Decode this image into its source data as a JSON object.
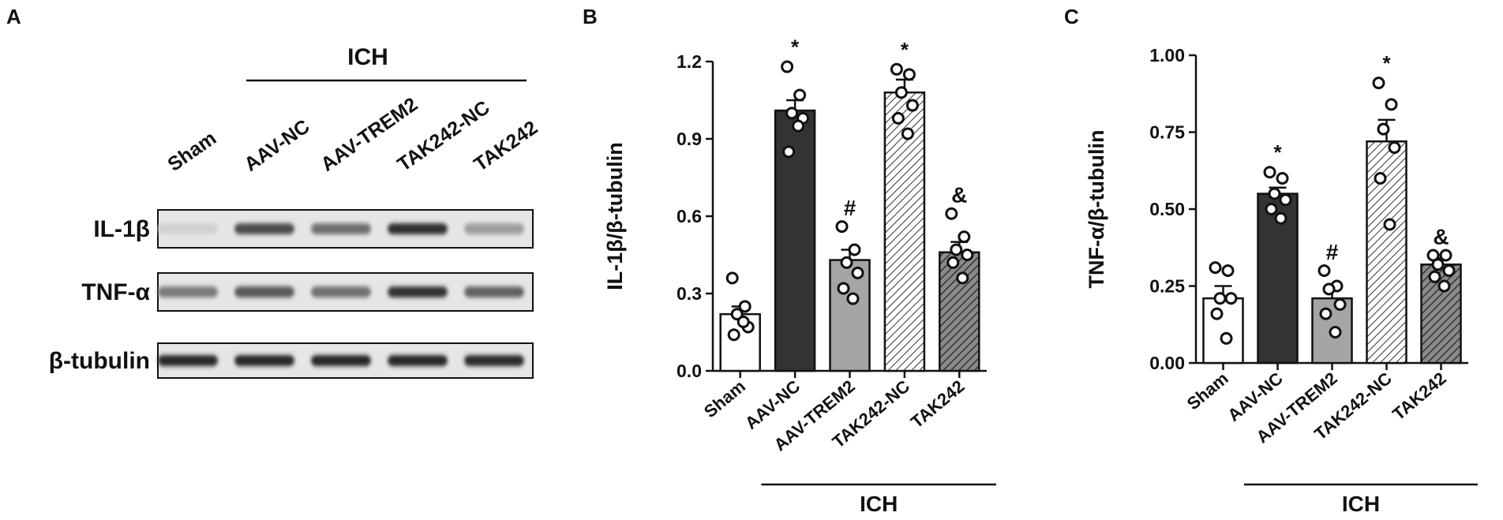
{
  "panels": {
    "a": "A",
    "b": "B",
    "c": "C"
  },
  "blot": {
    "group_label": "ICH",
    "lanes": [
      "Sham",
      "AAV-NC",
      "AAV-TREM2",
      "TAK242-NC",
      "TAK242"
    ],
    "rows": [
      {
        "label": "IL-1β",
        "intensity": [
          0.12,
          0.78,
          0.6,
          0.92,
          0.38
        ]
      },
      {
        "label": "TNF-α",
        "intensity": [
          0.55,
          0.72,
          0.6,
          0.9,
          0.68
        ]
      },
      {
        "label": "β-tubulin",
        "intensity": [
          0.95,
          0.95,
          0.95,
          0.95,
          0.93
        ]
      }
    ]
  },
  "chart_data": [
    {
      "type": "bar",
      "ylabel": "IL-1β/β-tubulin",
      "categories": [
        "Sham",
        "AAV-NC",
        "AAV-TREM2",
        "TAK242-NC",
        "TAK242"
      ],
      "group_label": "ICH",
      "values": [
        0.22,
        1.01,
        0.43,
        1.08,
        0.46
      ],
      "errors": [
        0.03,
        0.04,
        0.04,
        0.05,
        0.04
      ],
      "markers": [
        "",
        "*",
        "#",
        "*",
        "&"
      ],
      "points": [
        [
          0.36,
          0.25,
          0.22,
          0.17,
          0.14,
          0.19
        ],
        [
          1.18,
          1.07,
          1.0,
          0.98,
          0.85,
          0.95
        ],
        [
          0.56,
          0.47,
          0.42,
          0.38,
          0.32,
          0.28
        ],
        [
          1.17,
          1.15,
          1.08,
          1.03,
          0.98,
          0.92
        ],
        [
          0.61,
          0.52,
          0.47,
          0.45,
          0.42,
          0.36
        ]
      ],
      "ylim": [
        0,
        1.2
      ],
      "yticks": [
        "0.0",
        "0.3",
        "0.6",
        "0.9",
        "1.2"
      ],
      "fills": [
        "white",
        "#333333",
        "#a5a5a5",
        "hatch-light",
        "hatch-dark"
      ]
    },
    {
      "type": "bar",
      "ylabel": "TNF-α/β-tubulin",
      "categories": [
        "Sham",
        "AAV-NC",
        "AAV-TREM2",
        "TAK242-NC",
        "TAK242"
      ],
      "group_label": "ICH",
      "values": [
        0.21,
        0.55,
        0.21,
        0.72,
        0.32
      ],
      "errors": [
        0.04,
        0.02,
        0.03,
        0.07,
        0.02
      ],
      "markers": [
        "",
        "*",
        "#",
        "*",
        "&"
      ],
      "points": [
        [
          0.31,
          0.3,
          0.21,
          0.21,
          0.16,
          0.08
        ],
        [
          0.62,
          0.6,
          0.55,
          0.53,
          0.5,
          0.47
        ],
        [
          0.3,
          0.25,
          0.24,
          0.19,
          0.16,
          0.1
        ],
        [
          0.91,
          0.84,
          0.76,
          0.7,
          0.6,
          0.45
        ],
        [
          0.35,
          0.35,
          0.32,
          0.3,
          0.28,
          0.25
        ]
      ],
      "ylim": [
        0,
        1.0
      ],
      "yticks": [
        "0.00",
        "0.25",
        "0.50",
        "0.75",
        "1.00"
      ],
      "fills": [
        "white",
        "#333333",
        "#a5a5a5",
        "hatch-light",
        "hatch-dark"
      ]
    }
  ]
}
